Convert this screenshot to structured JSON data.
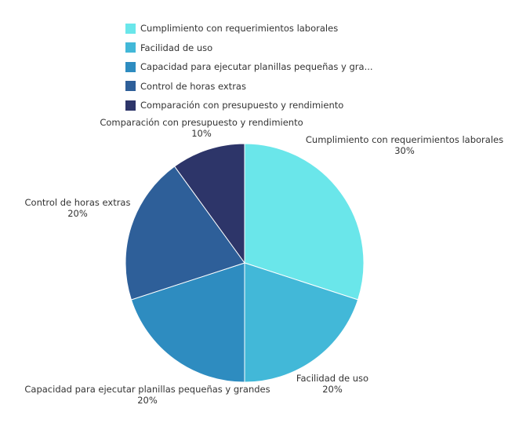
{
  "chart_data": {
    "type": "pie",
    "categories": [
      "Cumplimiento con requerimientos laborales",
      "Facilidad de uso",
      "Capacidad para ejecutar planillas pequeñas y grandes",
      "Control de horas extras",
      "Comparación con presupuesto y rendimiento"
    ],
    "values": [
      30,
      20,
      20,
      20,
      10
    ],
    "value_labels": [
      "30%",
      "20%",
      "20%",
      "20%",
      "10%"
    ],
    "colors": [
      "#6ae6ea",
      "#42b8d8",
      "#2e8cc0",
      "#2e5f99",
      "#2d3569"
    ],
    "legend": {
      "placement": "top",
      "entries": [
        "Cumplimiento con requerimientos laborales",
        "Facilidad de uso",
        "Capacidad para ejecutar planillas pequeñas y gra...",
        "Control de horas extras",
        "Comparación con presupuesto y rendimiento"
      ]
    }
  }
}
